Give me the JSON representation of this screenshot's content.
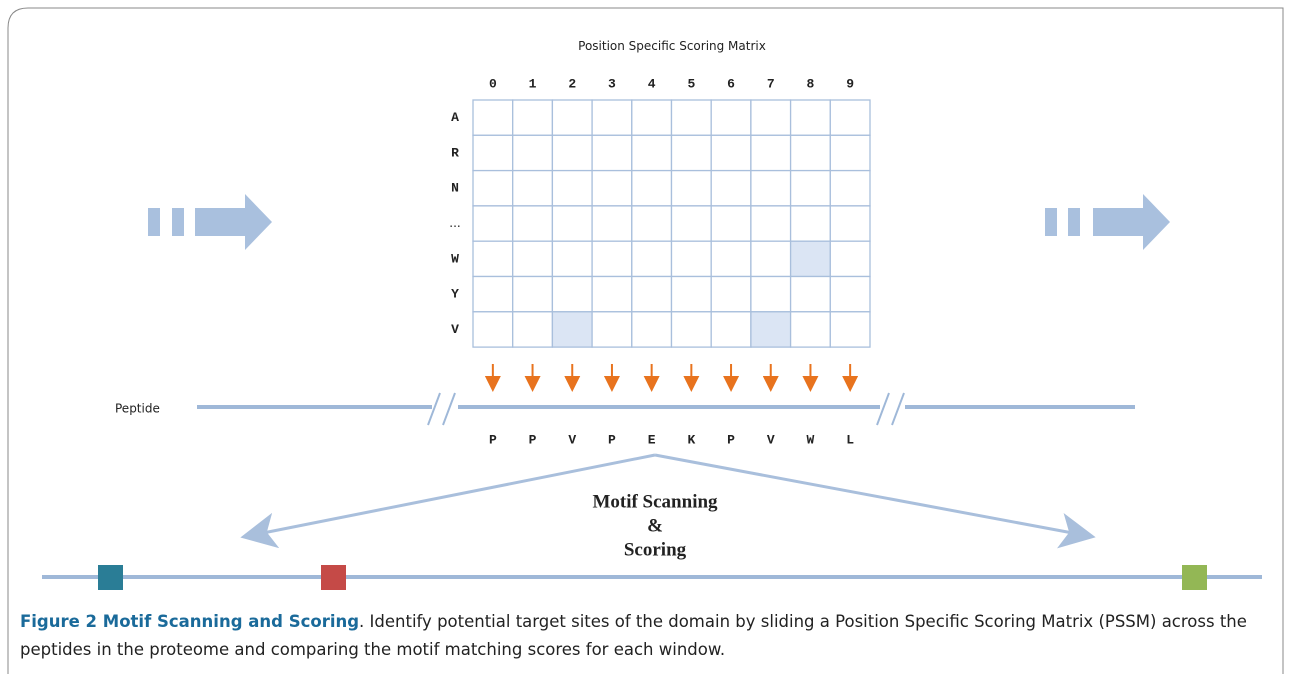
{
  "matrix": {
    "title": "Position Specific Scoring Matrix",
    "columns": [
      "0",
      "1",
      "2",
      "3",
      "4",
      "5",
      "6",
      "7",
      "8",
      "9"
    ],
    "rows": [
      "A",
      "R",
      "N",
      "...",
      "W",
      "Y",
      "V"
    ]
  },
  "peptide": {
    "label": "Peptide",
    "residues": [
      "P",
      "P",
      "V",
      "P",
      "E",
      "K",
      "P",
      "V",
      "W",
      "L"
    ]
  },
  "motif": {
    "lines": [
      "Motif Scanning",
      "&",
      "Scoring"
    ]
  },
  "caption": {
    "title": "Figure 2 Motif Scanning and Scoring",
    "text": ". Identify potential target sites of the domain by sliding a Position Specific Scoring Matrix (PSSM) across the peptides in the proteome and comparing the motif matching scores for each window."
  }
}
